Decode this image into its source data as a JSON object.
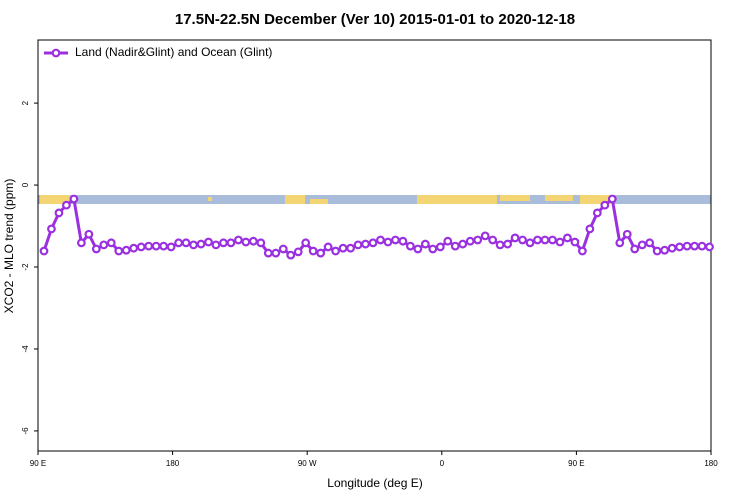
{
  "chart_data": {
    "type": "line",
    "title": "17.5N-22.5N December (Ver 10)   2015-01-01 to 2020-12-18",
    "x_label": "Longitude (deg E)",
    "y_label": "XCO2 - MLO trend (ppm)",
    "xlim": [
      90,
      540
    ],
    "ylim": [
      -6.49,
      3.54
    ],
    "xticks": [
      {
        "value": 90,
        "label": "90 E"
      },
      180,
      {
        "value": 270,
        "label": "90 W"
      },
      {
        "value": 360,
        "label": "0"
      },
      {
        "value": 450,
        "label": "90 E"
      },
      {
        "value": 540,
        "label": "180"
      }
    ],
    "yticks": [
      2,
      0,
      -2,
      -4,
      -6
    ],
    "legend": "upper left",
    "x": [
      94,
      99,
      104,
      109,
      114,
      119,
      124,
      129,
      134,
      139,
      144,
      149,
      154,
      159,
      164,
      169,
      174,
      179,
      184,
      189,
      194,
      199,
      204,
      209,
      214,
      219,
      224,
      229,
      234,
      239,
      244,
      249,
      254,
      259,
      264,
      269,
      274,
      279,
      284,
      289,
      294,
      299,
      304,
      309,
      314,
      319,
      324,
      329,
      334,
      339,
      344,
      349,
      354,
      359,
      364,
      369,
      374,
      379,
      384,
      389,
      394,
      399,
      404,
      409,
      414,
      419,
      424,
      429,
      434,
      439,
      444,
      449,
      454,
      459,
      464,
      469,
      474,
      479,
      484,
      489,
      494,
      499,
      504,
      509,
      514,
      519,
      524,
      529,
      534,
      539
    ],
    "series": [
      {
        "name": "Land (Nadir&Glint) and Ocean (Glint)",
        "color": "#9b30e0",
        "values": [
          -1.61,
          -1.07,
          -0.68,
          -0.49,
          -0.34,
          -1.41,
          -1.2,
          -1.56,
          -1.46,
          -1.41,
          -1.61,
          -1.59,
          -1.54,
          -1.51,
          -1.49,
          -1.49,
          -1.49,
          -1.51,
          -1.41,
          -1.41,
          -1.46,
          -1.44,
          -1.39,
          -1.46,
          -1.41,
          -1.41,
          -1.34,
          -1.39,
          -1.37,
          -1.41,
          -1.66,
          -1.66,
          -1.56,
          -1.71,
          -1.63,
          -1.41,
          -1.61,
          -1.66,
          -1.51,
          -1.61,
          -1.54,
          -1.54,
          -1.46,
          -1.44,
          -1.41,
          -1.34,
          -1.39,
          -1.34,
          -1.37,
          -1.49,
          -1.56,
          -1.44,
          -1.56,
          -1.51,
          -1.37,
          -1.49,
          -1.44,
          -1.37,
          -1.34,
          -1.24,
          -1.34,
          -1.46,
          -1.44,
          -1.29,
          -1.34,
          -1.41,
          -1.34,
          -1.34,
          -1.34,
          -1.39,
          -1.29,
          -1.39,
          -1.61,
          -1.07,
          -0.68,
          -0.49,
          -0.34,
          -1.41,
          -1.2,
          -1.56,
          -1.46,
          -1.41,
          -1.61,
          -1.59,
          -1.54,
          -1.51,
          -1.49,
          -1.49,
          -1.49,
          -1.51
        ]
      }
    ]
  }
}
